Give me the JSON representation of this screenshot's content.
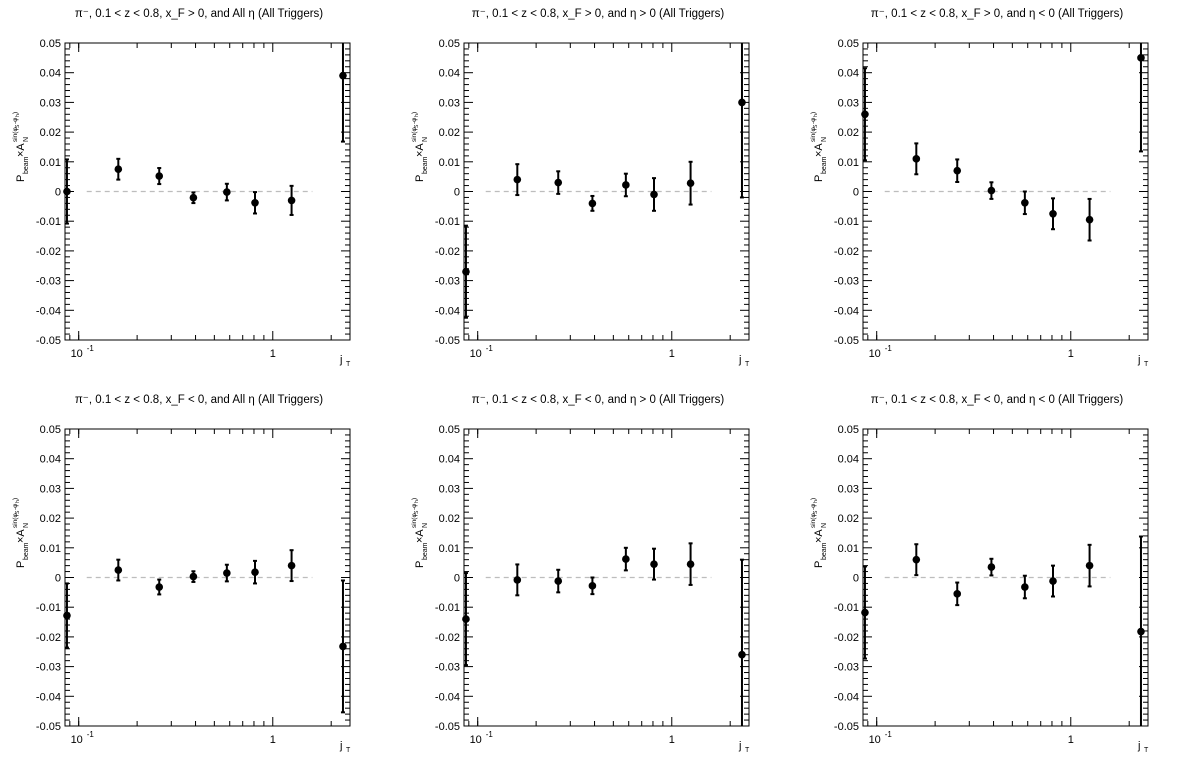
{
  "figure": {
    "axis": {
      "y_ticks": [
        "-0.05",
        "-0.04",
        "-0.03",
        "-0.02",
        "-0.01",
        "0",
        "0.01",
        "0.02",
        "0.03",
        "0.04",
        "0.05"
      ],
      "x_tick_labels": [
        "10^-1",
        "1"
      ],
      "x_label": "j_T",
      "y_label": "P_beam × A_N^sin(φ_S − φ_H)"
    },
    "colors": {
      "marker": "#000000",
      "reference_line": "#bdbdbd",
      "axes": "#000000"
    }
  },
  "chart_data": [
    {
      "type": "scatter",
      "title": "π⁻, 0.1 < z < 0.8, x_F > 0, and All η (All Triggers)",
      "xlabel": "j_T",
      "ylabel": "P_beam × A_N^sin(φ_S − φ_H)",
      "xscale": "log",
      "xlim": [
        0.085,
        2.5
      ],
      "ylim": [
        -0.05,
        0.05
      ],
      "x": [
        0.087,
        0.16,
        0.26,
        0.39,
        0.58,
        0.81,
        1.25,
        2.3
      ],
      "y": [
        0.0,
        0.0075,
        0.0052,
        -0.0021,
        -0.0002,
        -0.0038,
        -0.003,
        0.039
      ],
      "yerr": [
        0.0108,
        0.0035,
        0.0027,
        0.0018,
        0.0028,
        0.0036,
        0.0049,
        0.0222
      ],
      "reference_line_y": 0,
      "reference_line_x": [
        0.11,
        1.6
      ]
    },
    {
      "type": "scatter",
      "title": "π⁻, 0.1 < z < 0.8, x_F > 0, and η > 0 (All Triggers)",
      "xlabel": "j_T",
      "ylabel": "P_beam × A_N^sin(φ_S − φ_H)",
      "xscale": "log",
      "xlim": [
        0.085,
        2.5
      ],
      "ylim": [
        -0.05,
        0.05
      ],
      "x": [
        0.087,
        0.16,
        0.26,
        0.39,
        0.58,
        0.81,
        1.25,
        2.3
      ],
      "y": [
        -0.027,
        0.004,
        0.003,
        -0.004,
        0.0022,
        -0.001,
        0.0028,
        0.03
      ],
      "yerr": [
        0.0155,
        0.0052,
        0.0038,
        0.0025,
        0.0038,
        0.0055,
        0.0072,
        0.032
      ],
      "reference_line_y": 0,
      "reference_line_x": [
        0.11,
        1.6
      ]
    },
    {
      "type": "scatter",
      "title": "π⁻, 0.1 < z < 0.8, x_F > 0, and η < 0 (All Triggers)",
      "xlabel": "j_T",
      "ylabel": "P_beam × A_N^sin(φ_S − φ_H)",
      "xscale": "log",
      "xlim": [
        0.085,
        2.5
      ],
      "ylim": [
        -0.05,
        0.05
      ],
      "x": [
        0.087,
        0.16,
        0.26,
        0.39,
        0.58,
        0.81,
        1.25,
        2.3
      ],
      "y": [
        0.026,
        0.011,
        0.007,
        0.0003,
        -0.0038,
        -0.0075,
        -0.0095,
        0.045
      ],
      "yerr": [
        0.0155,
        0.0052,
        0.0038,
        0.0028,
        0.0038,
        0.0052,
        0.007,
        0.0315
      ],
      "reference_line_y": 0,
      "reference_line_x": [
        0.11,
        1.6
      ]
    },
    {
      "type": "scatter",
      "title": "π⁻, 0.1 < z < 0.8, x_F < 0, and All η (All Triggers)",
      "xlabel": "j_T",
      "ylabel": "P_beam × A_N^sin(φ_S − φ_H)",
      "xscale": "log",
      "xlim": [
        0.085,
        2.5
      ],
      "ylim": [
        -0.05,
        0.05
      ],
      "x": [
        0.087,
        0.16,
        0.26,
        0.39,
        0.58,
        0.81,
        1.25,
        2.3
      ],
      "y": [
        -0.0128,
        0.0025,
        -0.0032,
        0.0003,
        0.0015,
        0.0018,
        0.004,
        -0.0232
      ],
      "yerr": [
        0.0108,
        0.0035,
        0.0025,
        0.0018,
        0.0028,
        0.0038,
        0.0052,
        0.0222
      ],
      "reference_line_y": 0,
      "reference_line_x": [
        0.11,
        1.6
      ]
    },
    {
      "type": "scatter",
      "title": "π⁻, 0.1 < z < 0.8, x_F < 0, and η > 0 (All Triggers)",
      "xlabel": "j_T",
      "ylabel": "P_beam × A_N^sin(φ_S − φ_H)",
      "xscale": "log",
      "xlim": [
        0.085,
        2.5
      ],
      "ylim": [
        -0.05,
        0.05
      ],
      "x": [
        0.087,
        0.16,
        0.26,
        0.39,
        0.58,
        0.81,
        1.25,
        2.3
      ],
      "y": [
        -0.014,
        -0.0008,
        -0.0012,
        -0.0028,
        0.0062,
        0.0045,
        0.0045,
        -0.026
      ],
      "yerr": [
        0.0155,
        0.0052,
        0.0038,
        0.0028,
        0.0038,
        0.0052,
        0.007,
        0.032
      ],
      "reference_line_y": 0,
      "reference_line_x": [
        0.11,
        1.6
      ]
    },
    {
      "type": "scatter",
      "title": "π⁻, 0.1 < z < 0.8, x_F < 0, and η < 0 (All Triggers)",
      "xlabel": "j_T",
      "ylabel": "P_beam × A_N^sin(φ_S − φ_H)",
      "xscale": "log",
      "xlim": [
        0.085,
        2.5
      ],
      "ylim": [
        -0.05,
        0.05
      ],
      "x": [
        0.087,
        0.16,
        0.26,
        0.39,
        0.58,
        0.81,
        1.25,
        2.3
      ],
      "y": [
        -0.0118,
        0.006,
        -0.0055,
        0.0035,
        -0.0032,
        -0.0012,
        0.004,
        -0.0182
      ],
      "yerr": [
        0.0155,
        0.0052,
        0.0038,
        0.0028,
        0.0038,
        0.0052,
        0.007,
        0.032
      ],
      "reference_line_y": 0,
      "reference_line_x": [
        0.11,
        1.6
      ]
    }
  ]
}
